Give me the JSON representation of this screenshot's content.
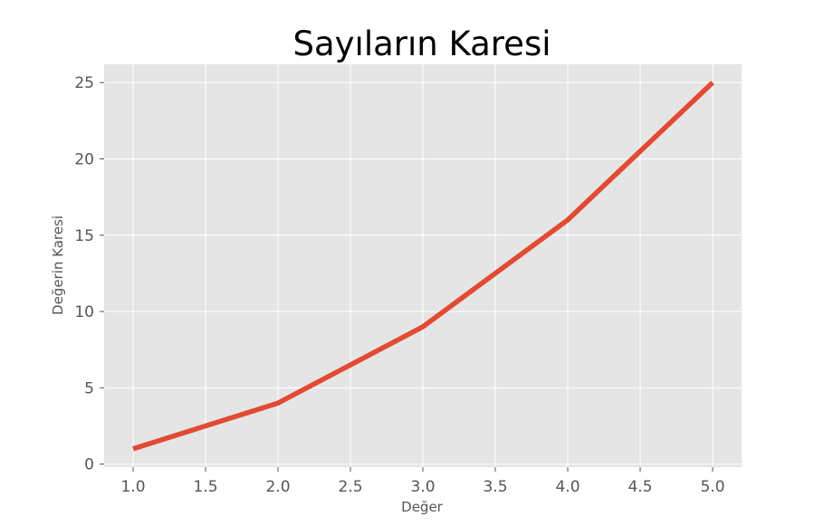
{
  "chart_data": {
    "type": "line",
    "title": "Sayıların Karesi",
    "xlabel": "Değer",
    "ylabel": "Değerin Karesi",
    "x": [
      1,
      2,
      3,
      4,
      5
    ],
    "series": [
      {
        "values": [
          1,
          4,
          9,
          16,
          25
        ],
        "color": "#e24a33"
      }
    ],
    "xlim": [
      0.8,
      5.2
    ],
    "ylim": [
      -0.2,
      26.2
    ],
    "xticks": [
      "1.0",
      "1.5",
      "2.0",
      "2.5",
      "3.0",
      "3.5",
      "4.0",
      "4.5",
      "5.0"
    ],
    "yticks": [
      "0",
      "5",
      "10",
      "15",
      "20",
      "25"
    ],
    "grid": true,
    "background": "#e5e5e5",
    "grid_color": "#ffffff"
  }
}
